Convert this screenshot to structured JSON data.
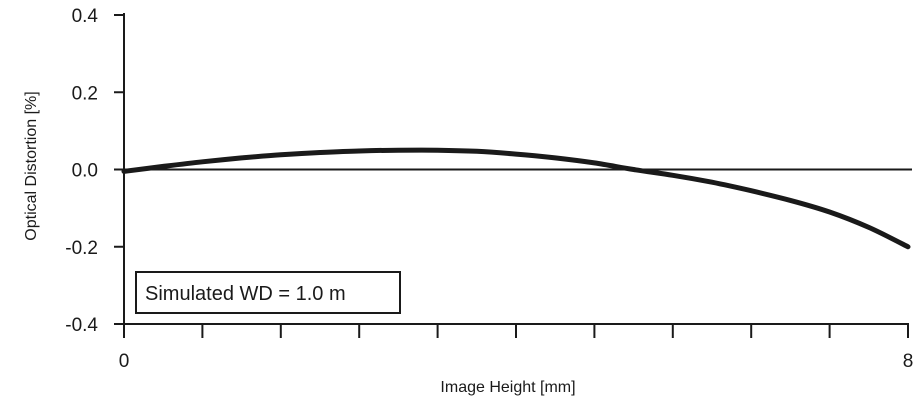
{
  "chart_data": {
    "type": "line",
    "title": "",
    "xlabel": "Image Height [mm]",
    "ylabel": "Optical Distortion [%]",
    "xlim": [
      0,
      8
    ],
    "ylim": [
      -0.4,
      0.4
    ],
    "x_major_ticks": [
      0,
      8
    ],
    "x_major_tick_labels": [
      "0",
      "8"
    ],
    "x_minor_ticks": [
      0.8,
      1.6,
      2.4,
      3.2,
      4.0,
      4.8,
      5.6,
      6.4,
      7.2
    ],
    "y_ticks": [
      -0.4,
      -0.2,
      0.0,
      0.2,
      0.4
    ],
    "y_tick_labels": [
      "-0.4",
      "-0.2",
      "0.0",
      "0.2",
      "0.4"
    ],
    "reference_line": 0.0,
    "grid": false,
    "annotation": "Simulated WD = 1.0 m",
    "line_color": "#1a1a1a",
    "series": [
      {
        "x": [
          0,
          0.4,
          0.8,
          1.2,
          1.6,
          2.0,
          2.4,
          2.8,
          3.2,
          3.6,
          4.0,
          4.4,
          4.8,
          5.2,
          5.6,
          6.0,
          6.4,
          6.8,
          7.2,
          7.6,
          8.0
        ],
        "values": [
          -0.005,
          0.008,
          0.02,
          0.03,
          0.038,
          0.044,
          0.048,
          0.05,
          0.05,
          0.047,
          0.04,
          0.03,
          0.017,
          0.0,
          -0.015,
          -0.033,
          -0.055,
          -0.08,
          -0.11,
          -0.15,
          -0.2
        ]
      }
    ]
  }
}
